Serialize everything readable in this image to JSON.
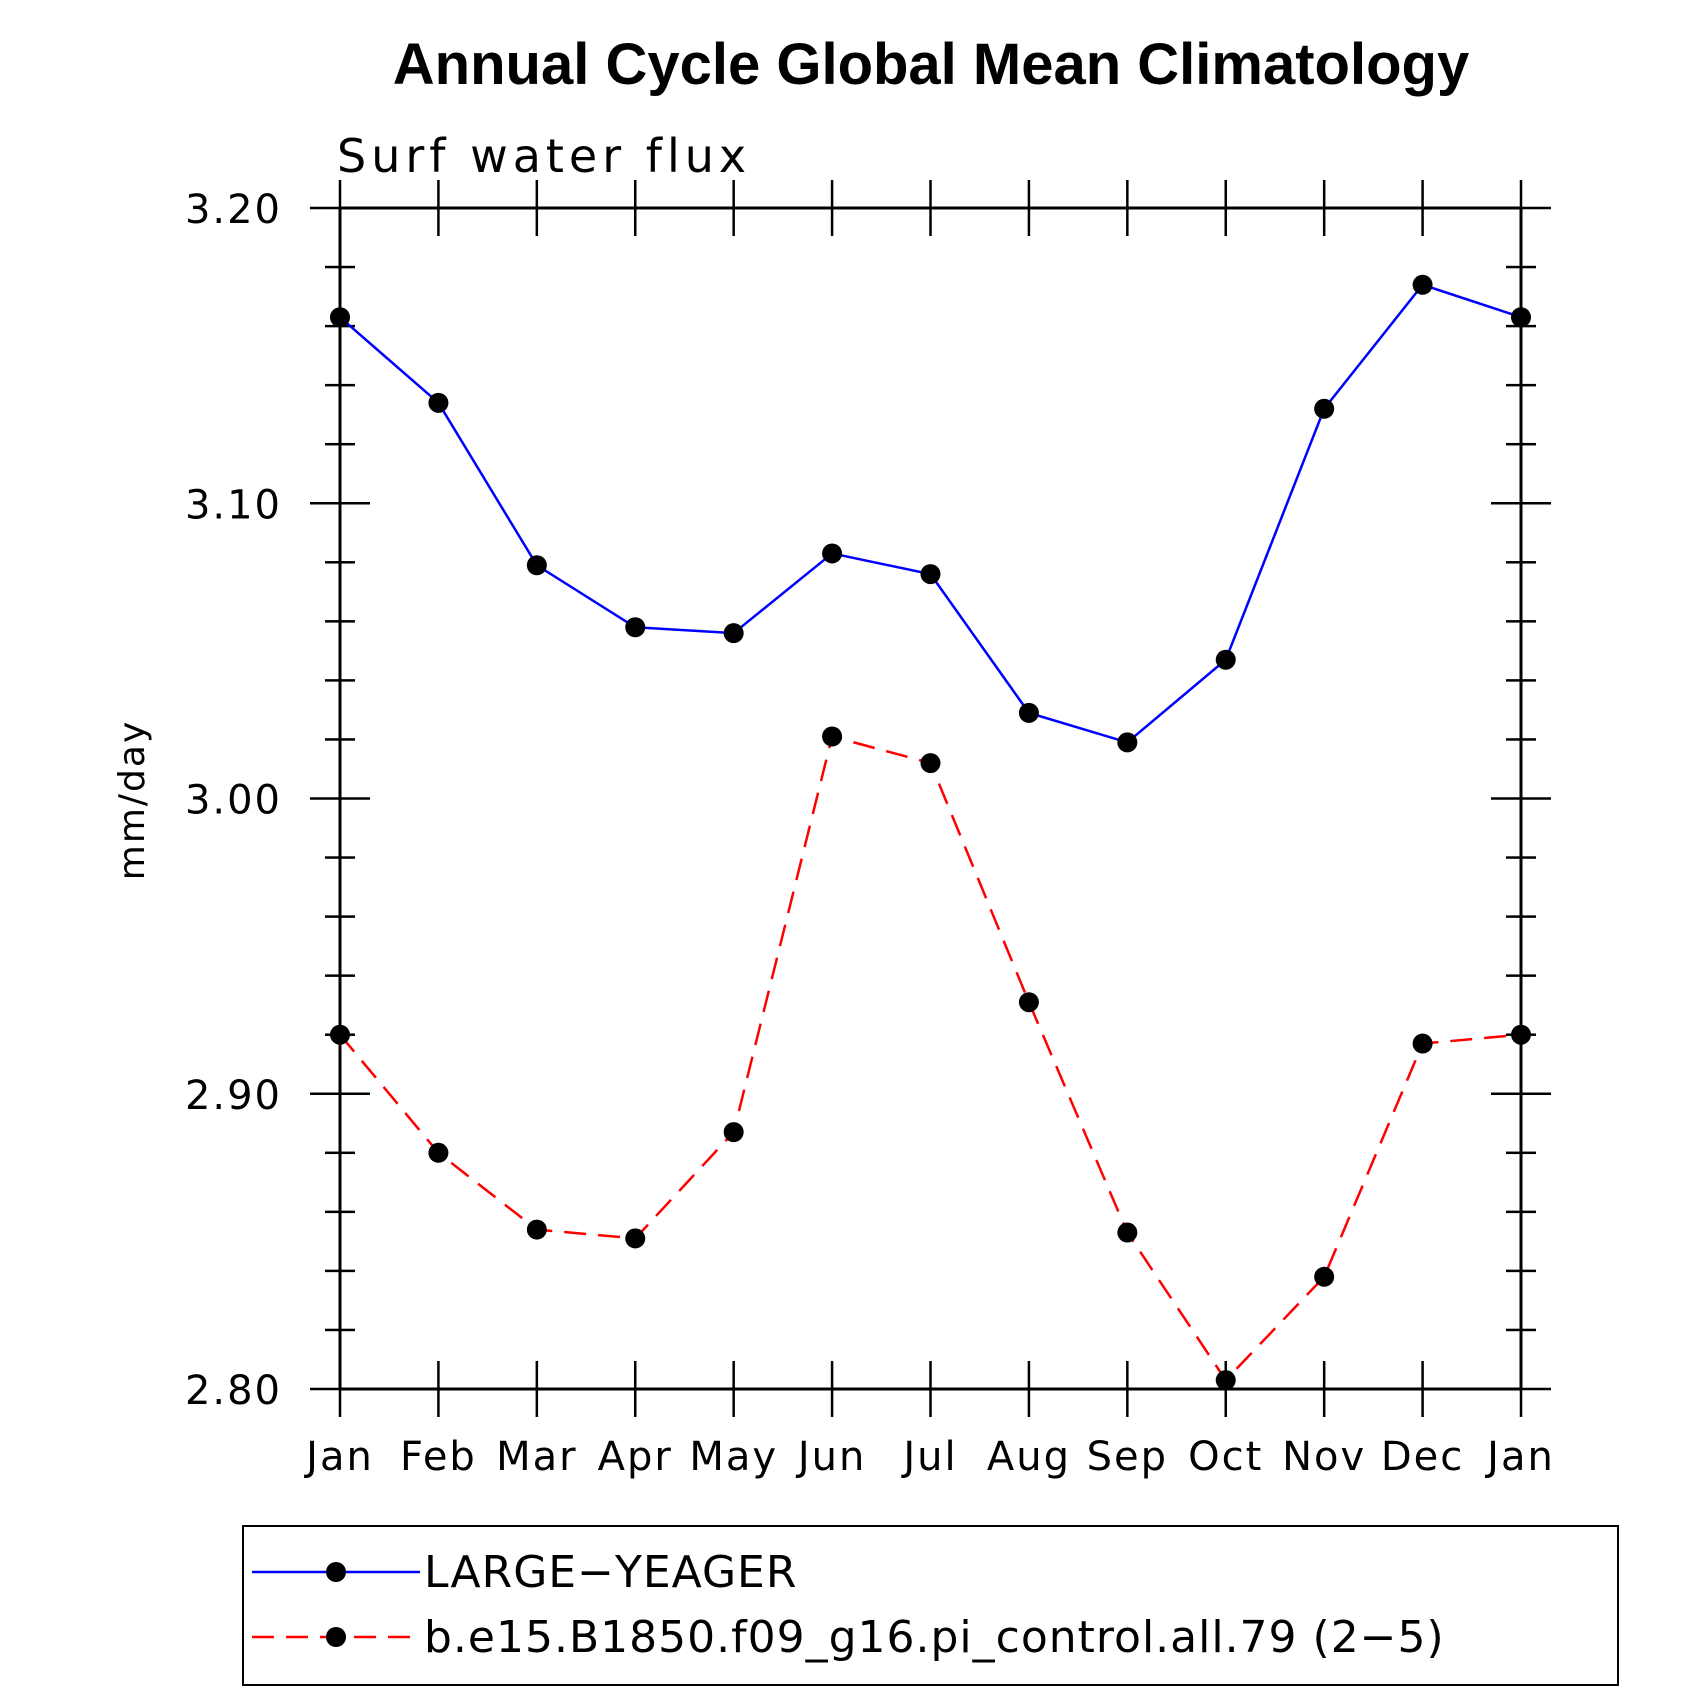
{
  "chart_data": {
    "type": "line",
    "title": "Annual Cycle Global Mean Climatology",
    "subtitle": "Surf  water  flux",
    "ylabel": "mm/day",
    "xlabel": "",
    "categories": [
      "Jan",
      "Feb",
      "Mar",
      "Apr",
      "May",
      "Jun",
      "Jul",
      "Aug",
      "Sep",
      "Oct",
      "Nov",
      "Dec",
      "Jan"
    ],
    "ylim": [
      2.8,
      3.2
    ],
    "yticks": [
      "2.80",
      "2.90",
      "3.00",
      "3.10",
      "3.20"
    ],
    "ytick_values": [
      2.8,
      2.9,
      3.0,
      3.1,
      3.2
    ],
    "grid": false,
    "legend_position": "bottom",
    "series": [
      {
        "name": "LARGE−YEAGER",
        "color": "#0000ff",
        "line_style": "solid",
        "marker": "filled-circle",
        "values": [
          3.163,
          3.134,
          3.079,
          3.058,
          3.056,
          3.083,
          3.076,
          3.029,
          3.019,
          3.047,
          3.132,
          3.174,
          3.163
        ]
      },
      {
        "name": "b.e15.B1850.f09_g16.pi_control.all.79 (2−5)",
        "color": "#ff0000",
        "line_style": "dashed",
        "marker": "filled-circle",
        "values": [
          2.92,
          2.88,
          2.854,
          2.851,
          2.887,
          3.021,
          3.012,
          2.931,
          2.853,
          2.803,
          2.838,
          2.917,
          2.92
        ]
      }
    ]
  }
}
